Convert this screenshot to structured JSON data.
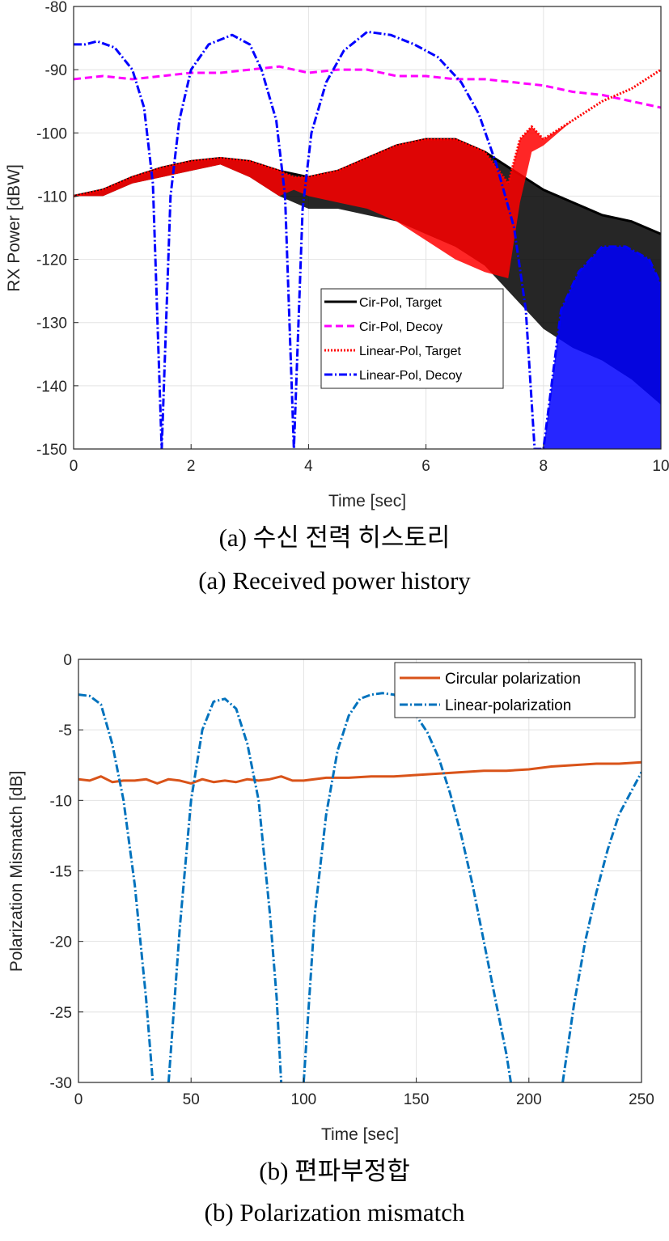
{
  "captions": {
    "a_korean": "(a) 수신 전력 히스토리",
    "a_english": "(a) Received power history",
    "b_korean": "(b) 편파부정합",
    "b_english": "(b) Polarization mismatch"
  },
  "chart_data": [
    {
      "type": "line",
      "xlabel": "Time [sec]",
      "ylabel": "RX Power [dBW]",
      "xlim": [
        0,
        10
      ],
      "ylim": [
        -150,
        -80
      ],
      "xticks": [
        "0",
        "2",
        "4",
        "6",
        "8",
        "10"
      ],
      "yticks": [
        "-150",
        "-140",
        "-130",
        "-120",
        "-110",
        "-100",
        "-90",
        "-80"
      ],
      "grid": true,
      "legend_position": "lower-right",
      "series": [
        {
          "name": "Cir-Pol, Target",
          "color": "#000000",
          "style": "solid",
          "x": [
            0,
            0.5,
            1.0,
            1.5,
            2.0,
            2.5,
            3.0,
            3.5,
            4.0,
            4.5,
            5.0,
            5.5,
            6.0,
            6.5,
            7.0,
            7.5,
            8.0,
            8.5,
            9.0,
            9.5,
            10
          ],
          "y": [
            -110,
            -109,
            -107,
            -105.5,
            -104.5,
            -104,
            -104.5,
            -106,
            -107,
            -106,
            -104,
            -102,
            -101,
            -101,
            -103,
            -106,
            -109,
            -111,
            -113,
            -114,
            -116
          ],
          "y_min": [
            -110,
            -110,
            -108,
            -107,
            -106,
            -105,
            -107,
            -110,
            -112,
            -112,
            -113,
            -114,
            -116,
            -118,
            -121,
            -126,
            -131,
            -134,
            -136,
            -139,
            -143
          ]
        },
        {
          "name": "Cir-Pol, Decoy",
          "color": "#ff00ff",
          "style": "dashed",
          "x": [
            0,
            0.5,
            1.0,
            1.5,
            2.0,
            2.5,
            3.0,
            3.5,
            4.0,
            4.5,
            5.0,
            5.5,
            6.0,
            6.5,
            7.0,
            7.5,
            8.0,
            8.5,
            9.0,
            9.5,
            10
          ],
          "y": [
            -91.5,
            -91,
            -91.5,
            -91,
            -90.5,
            -90.5,
            -90,
            -89.5,
            -90.5,
            -90,
            -90,
            -91,
            -91,
            -91.5,
            -91.5,
            -92,
            -92.5,
            -93.5,
            -94,
            -95,
            -96
          ]
        },
        {
          "name": "Linear-Pol, Target",
          "color": "#ff0000",
          "style": "dotted",
          "x": [
            0,
            0.5,
            1.0,
            1.5,
            2.0,
            2.5,
            3.0,
            3.5,
            3.75,
            4.0,
            4.5,
            5.0,
            5.5,
            6.0,
            6.5,
            7.0,
            7.4,
            7.6,
            7.8,
            8.0,
            8.5,
            9.0,
            9.5,
            10
          ],
          "y": [
            -110,
            -109,
            -107,
            -105.5,
            -104.5,
            -104,
            -104.5,
            -106,
            -107,
            -107,
            -106,
            -104,
            -102,
            -101,
            -101,
            -103,
            -108,
            -101,
            -99,
            -101,
            -98,
            -95,
            -93,
            -90
          ],
          "y_min": [
            -110,
            -110,
            -108,
            -107,
            -106,
            -105,
            -107,
            -110,
            -109,
            -110,
            -111,
            -112,
            -114,
            -117,
            -120,
            -122,
            -123,
            -111,
            -103,
            -102,
            -98,
            -95,
            -93,
            -90
          ]
        },
        {
          "name": "Linear-Pol, Decoy",
          "color": "#0000ff",
          "style": "dashdot",
          "x": [
            0,
            0.2,
            0.4,
            0.7,
            1.0,
            1.2,
            1.35,
            1.5,
            1.65,
            1.8,
            2.0,
            2.3,
            2.7,
            3.0,
            3.2,
            3.45,
            3.6,
            3.75,
            3.9,
            4.05,
            4.3,
            4.6,
            5.0,
            5.4,
            5.8,
            6.2,
            6.6,
            6.9,
            7.2,
            7.5,
            7.7,
            7.85,
            8.0,
            8.3,
            8.6,
            9.0,
            9.4,
            9.8,
            10
          ],
          "y": [
            -86,
            -86,
            -85.5,
            -86.5,
            -90,
            -96,
            -108,
            -150,
            -110,
            -98,
            -90,
            -86,
            -84.5,
            -86,
            -90,
            -98,
            -110,
            -150,
            -112,
            -100,
            -92,
            -87,
            -84,
            -84.5,
            -86,
            -88,
            -92,
            -97,
            -105,
            -115,
            -128,
            -150,
            -150,
            -128,
            -122,
            -118,
            -118,
            -120,
            -124
          ],
          "y_min": [
            -86,
            -86,
            -85.5,
            -86.5,
            -90,
            -96,
            -108,
            -150,
            -110,
            -98,
            -90,
            -86,
            -84.5,
            -86,
            -90,
            -98,
            -110,
            -150,
            -112,
            -100,
            -92,
            -87,
            -84,
            -84.5,
            -86,
            -88,
            -92,
            -97,
            -105,
            -115,
            -128,
            -150,
            -150,
            -150,
            -150,
            -150,
            -150,
            -150,
            -150
          ]
        }
      ]
    },
    {
      "type": "line",
      "xlabel": "Time [sec]",
      "ylabel": "Polarization Mismatch [dB]",
      "xlim": [
        0,
        250
      ],
      "ylim": [
        -30,
        0
      ],
      "xticks": [
        "0",
        "50",
        "100",
        "150",
        "200",
        "250"
      ],
      "yticks": [
        "-30",
        "-25",
        "-20",
        "-15",
        "-10",
        "-5",
        "0"
      ],
      "grid": true,
      "legend_position": "top-right",
      "series": [
        {
          "name": "Circular polarization",
          "color": "#d95319",
          "style": "solid",
          "x": [
            0,
            5,
            10,
            15,
            20,
            25,
            30,
            35,
            40,
            45,
            50,
            55,
            60,
            65,
            70,
            75,
            80,
            85,
            90,
            95,
            100,
            110,
            120,
            130,
            140,
            150,
            160,
            170,
            180,
            190,
            200,
            210,
            220,
            230,
            240,
            250
          ],
          "y": [
            -8.5,
            -8.6,
            -8.3,
            -8.7,
            -8.6,
            -8.6,
            -8.5,
            -8.8,
            -8.5,
            -8.6,
            -8.8,
            -8.5,
            -8.7,
            -8.6,
            -8.7,
            -8.5,
            -8.6,
            -8.5,
            -8.3,
            -8.6,
            -8.6,
            -8.4,
            -8.4,
            -8.3,
            -8.3,
            -8.2,
            -8.1,
            -8.0,
            -7.9,
            -7.9,
            -7.8,
            -7.6,
            -7.5,
            -7.4,
            -7.4,
            -7.3
          ]
        },
        {
          "name": "Linear-polarization",
          "color": "#0072bd",
          "style": "dashdot",
          "x": [
            0,
            5,
            10,
            15,
            20,
            25,
            30,
            33,
            35,
            38,
            40,
            45,
            50,
            55,
            60,
            65,
            70,
            75,
            80,
            85,
            88,
            90,
            95,
            97,
            100,
            105,
            110,
            115,
            120,
            125,
            130,
            135,
            140,
            145,
            150,
            155,
            160,
            165,
            170,
            175,
            180,
            185,
            190,
            192,
            195,
            210,
            215,
            220,
            225,
            230,
            235,
            240,
            245,
            250
          ],
          "y": [
            -2.5,
            -2.6,
            -3.2,
            -6,
            -10,
            -16,
            -24,
            -30,
            null,
            null,
            -30,
            -19,
            -10,
            -5,
            -3,
            -2.8,
            -3.5,
            -6,
            -10,
            -18,
            -24,
            -30,
            null,
            null,
            -30,
            -18,
            -11,
            -6.5,
            -4,
            -2.8,
            -2.5,
            -2.4,
            -2.5,
            -3,
            -4,
            -5.2,
            -7,
            -9.5,
            -12.5,
            -16,
            -20,
            -24,
            -28,
            -30,
            null,
            null,
            -30,
            -24.5,
            -20,
            -16.5,
            -13.5,
            -11,
            -9.5,
            -8
          ]
        }
      ]
    }
  ]
}
